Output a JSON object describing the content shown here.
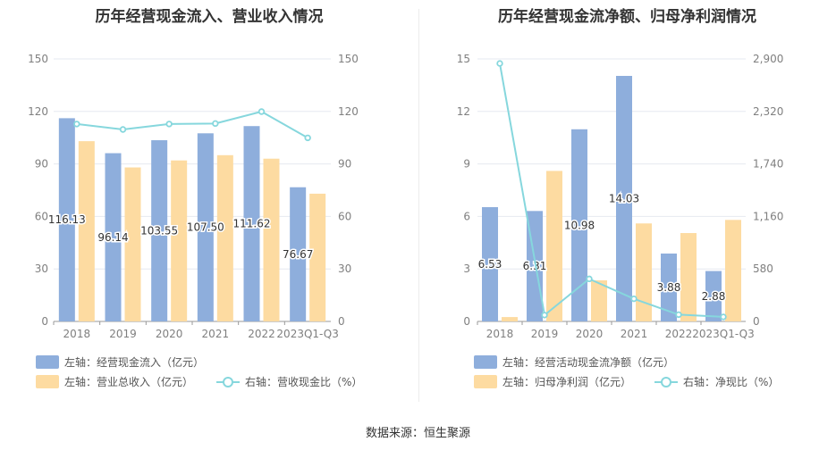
{
  "source": "数据来源：恒生聚源",
  "colors": {
    "bar1": "#8eaedc",
    "bar2": "#fddba1",
    "line": "#86d7dd",
    "axis_text": "#7f7f7f",
    "grid": "#e6e9f0"
  },
  "chart_data": [
    {
      "type": "bar",
      "title": "历年经营现金流入、营业收入情况",
      "categories": [
        "2018",
        "2019",
        "2020",
        "2021",
        "2022",
        "2023Q1-Q3"
      ],
      "left_axis": {
        "ticks": [
          "0",
          "30",
          "60",
          "90",
          "120",
          "150"
        ],
        "ylim": [
          0,
          150
        ]
      },
      "right_axis": {
        "ticks": [
          "0",
          "30",
          "60",
          "90",
          "120",
          "150"
        ],
        "ylim": [
          0,
          150
        ]
      },
      "series": [
        {
          "name": "左轴：经营现金流入（亿元）",
          "kind": "bar",
          "axis": "left",
          "values": [
            116.13,
            96.14,
            103.55,
            107.5,
            111.62,
            76.67
          ],
          "labels": [
            "116.13",
            "96.14",
            "103.55",
            "107.50",
            "111.62",
            "76.67"
          ]
        },
        {
          "name": "左轴：营业总收入（亿元）",
          "kind": "bar",
          "axis": "left",
          "values": [
            103,
            88,
            92,
            95,
            93,
            73
          ]
        },
        {
          "name": "右轴：营收现金比（%）",
          "kind": "line",
          "axis": "right",
          "values": [
            112.8,
            109.7,
            112.8,
            113.1,
            119.9,
            104.9
          ]
        }
      ],
      "legend_position": "bottom-left"
    },
    {
      "type": "bar",
      "title": "历年经营现金流净额、归母净利润情况",
      "categories": [
        "2018",
        "2019",
        "2020",
        "2021",
        "2022",
        "2023Q1-Q3"
      ],
      "left_axis": {
        "ticks": [
          "0",
          "3",
          "6",
          "9",
          "12",
          "15"
        ],
        "ylim": [
          0,
          15
        ]
      },
      "right_axis": {
        "ticks": [
          "0",
          "580",
          "1,160",
          "1,740",
          "2,320",
          "2,900"
        ],
        "ylim": [
          0,
          2900
        ]
      },
      "series": [
        {
          "name": "左轴：经营活动现金流净额（亿元）",
          "kind": "bar",
          "axis": "left",
          "values": [
            6.53,
            6.31,
            10.98,
            14.03,
            3.88,
            2.88
          ],
          "labels": [
            "6.53",
            "6.31",
            "10.98",
            "14.03",
            "3.88",
            "2.88"
          ]
        },
        {
          "name": "左轴：归母净利润（亿元）",
          "kind": "bar",
          "axis": "left",
          "values": [
            0.25,
            8.6,
            2.35,
            5.6,
            5.05,
            5.8
          ]
        },
        {
          "name": "右轴：净现比（%）",
          "kind": "line",
          "axis": "right",
          "values": [
            2850,
            70,
            470,
            250,
            75,
            50
          ]
        }
      ],
      "legend_position": "bottom-left"
    }
  ]
}
